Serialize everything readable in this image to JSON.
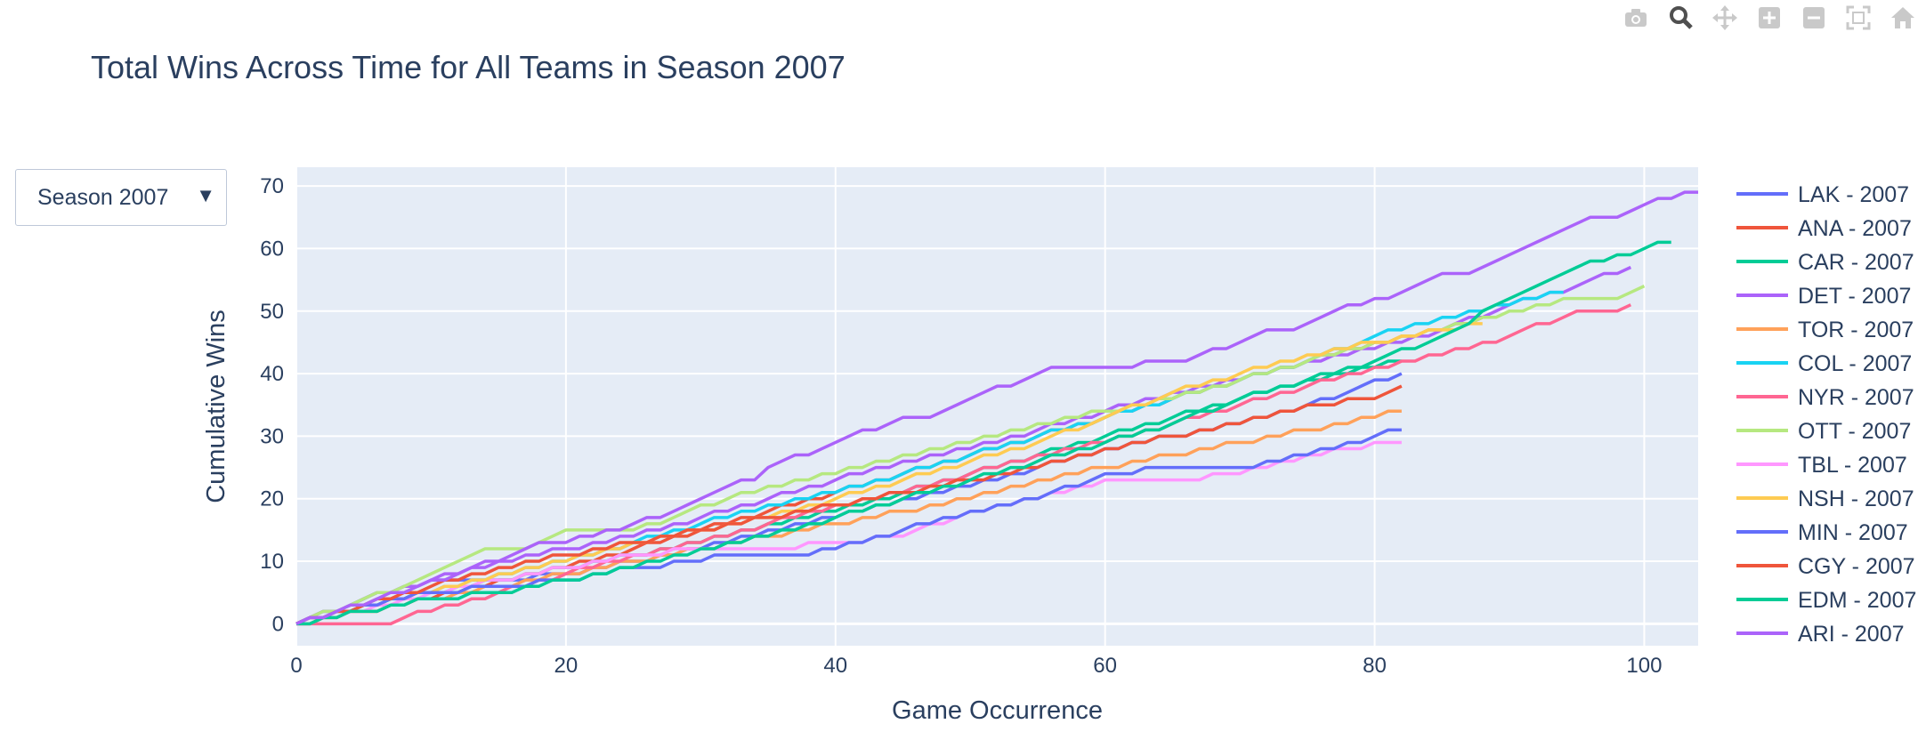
{
  "modebar": {
    "icons": [
      "camera-icon",
      "zoom-icon",
      "pan-icon",
      "zoom-in-icon",
      "zoom-out-icon",
      "autoscale-icon",
      "reset-axes-icon"
    ]
  },
  "dropdown": {
    "selected": "Season 2007",
    "arrow": "▼"
  },
  "chart_data": {
    "type": "line",
    "title": "Total Wins Across Time for All Teams in Season 2007",
    "xlabel": "Game Occurrence",
    "ylabel": "Cumulative Wins",
    "xlim": [
      0,
      104
    ],
    "ylim": [
      -3.5,
      73
    ],
    "xticks": [
      0,
      20,
      40,
      60,
      80,
      100
    ],
    "yticks": [
      0,
      10,
      20,
      30,
      40,
      50,
      60,
      70
    ],
    "grid": true,
    "legend_position": "right",
    "plot_background": "#e5ecf6",
    "series": [
      {
        "name": "LAK - 2007",
        "color": "#636efa",
        "points": [
          [
            0,
            0
          ],
          [
            5,
            4
          ],
          [
            10,
            7
          ],
          [
            15,
            7
          ],
          [
            20,
            8
          ],
          [
            25,
            10
          ],
          [
            30,
            12
          ],
          [
            35,
            15
          ],
          [
            40,
            17
          ],
          [
            45,
            20
          ],
          [
            50,
            22
          ],
          [
            55,
            25
          ],
          [
            60,
            28
          ],
          [
            65,
            30
          ],
          [
            70,
            32
          ],
          [
            75,
            35
          ],
          [
            82,
            40
          ]
        ]
      },
      {
        "name": "ANA - 2007",
        "color": "#ef553b",
        "points": [
          [
            0,
            0
          ],
          [
            5,
            2
          ],
          [
            10,
            4
          ],
          [
            15,
            7
          ],
          [
            20,
            9
          ],
          [
            25,
            12
          ],
          [
            30,
            15
          ],
          [
            35,
            18
          ],
          [
            40,
            21
          ],
          [
            45,
            24
          ],
          [
            50,
            27
          ],
          [
            55,
            30
          ],
          [
            60,
            33
          ],
          [
            65,
            36
          ],
          [
            70,
            39
          ],
          [
            75,
            42
          ],
          [
            80,
            45
          ],
          [
            85,
            47
          ],
          [
            88,
            49
          ]
        ]
      },
      {
        "name": "CAR - 2007",
        "color": "#00cc96",
        "points": [
          [
            0,
            0
          ],
          [
            5,
            3
          ],
          [
            10,
            5
          ],
          [
            15,
            7
          ],
          [
            20,
            9
          ],
          [
            25,
            11
          ],
          [
            30,
            13
          ],
          [
            35,
            16
          ],
          [
            40,
            18
          ],
          [
            45,
            21
          ],
          [
            50,
            24
          ],
          [
            55,
            27
          ],
          [
            60,
            30
          ],
          [
            65,
            33
          ],
          [
            70,
            36
          ],
          [
            75,
            39
          ],
          [
            82,
            42
          ]
        ]
      },
      {
        "name": "DET - 2007",
        "color": "#ab63fa",
        "points": [
          [
            0,
            0
          ],
          [
            5,
            4
          ],
          [
            10,
            7
          ],
          [
            15,
            10
          ],
          [
            20,
            12
          ],
          [
            25,
            14
          ],
          [
            30,
            17
          ],
          [
            35,
            20
          ],
          [
            40,
            23
          ],
          [
            45,
            26
          ],
          [
            50,
            28
          ],
          [
            55,
            31
          ],
          [
            60,
            34
          ],
          [
            65,
            37
          ],
          [
            70,
            39
          ],
          [
            75,
            42
          ],
          [
            80,
            44
          ],
          [
            85,
            47
          ],
          [
            90,
            51
          ],
          [
            95,
            54
          ],
          [
            99,
            57
          ]
        ]
      },
      {
        "name": "TOR - 2007",
        "color": "#ffa15a",
        "points": [
          [
            0,
            0
          ],
          [
            5,
            2
          ],
          [
            10,
            4
          ],
          [
            15,
            6
          ],
          [
            20,
            8
          ],
          [
            25,
            10
          ],
          [
            30,
            12
          ],
          [
            35,
            14
          ],
          [
            40,
            16
          ],
          [
            45,
            18
          ],
          [
            50,
            20
          ],
          [
            55,
            23
          ],
          [
            60,
            25
          ],
          [
            65,
            27
          ],
          [
            70,
            29
          ],
          [
            75,
            31
          ],
          [
            82,
            34
          ]
        ]
      },
      {
        "name": "COL - 2007",
        "color": "#19d3f3",
        "points": [
          [
            0,
            0
          ],
          [
            5,
            3
          ],
          [
            10,
            5
          ],
          [
            15,
            8
          ],
          [
            20,
            10
          ],
          [
            25,
            13
          ],
          [
            30,
            16
          ],
          [
            35,
            19
          ],
          [
            40,
            21
          ],
          [
            45,
            24
          ],
          [
            50,
            27
          ],
          [
            55,
            30
          ],
          [
            60,
            33
          ],
          [
            65,
            36
          ],
          [
            70,
            39
          ],
          [
            75,
            42
          ],
          [
            80,
            46
          ],
          [
            85,
            49
          ],
          [
            90,
            51
          ],
          [
            94,
            53
          ]
        ]
      },
      {
        "name": "NYR - 2007",
        "color": "#ff6692",
        "points": [
          [
            0,
            0
          ],
          [
            5,
            0
          ],
          [
            7,
            0
          ],
          [
            9,
            2
          ],
          [
            12,
            3
          ],
          [
            15,
            5
          ],
          [
            20,
            8
          ],
          [
            25,
            11
          ],
          [
            30,
            13
          ],
          [
            35,
            16
          ],
          [
            40,
            19
          ],
          [
            45,
            21
          ],
          [
            50,
            24
          ],
          [
            55,
            27
          ],
          [
            60,
            29
          ],
          [
            65,
            32
          ],
          [
            70,
            35
          ],
          [
            75,
            38
          ],
          [
            80,
            41
          ],
          [
            85,
            43
          ],
          [
            90,
            46
          ],
          [
            95,
            50
          ],
          [
            98,
            50
          ],
          [
            99,
            51
          ]
        ]
      },
      {
        "name": "OTT - 2007",
        "color": "#b6e880",
        "points": [
          [
            0,
            0
          ],
          [
            4,
            3
          ],
          [
            8,
            6
          ],
          [
            11,
            9
          ],
          [
            14,
            12
          ],
          [
            17,
            12
          ],
          [
            19,
            14
          ],
          [
            21,
            15
          ],
          [
            25,
            15
          ],
          [
            28,
            17
          ],
          [
            32,
            20
          ],
          [
            36,
            22
          ],
          [
            40,
            24
          ],
          [
            45,
            27
          ],
          [
            50,
            29
          ],
          [
            55,
            32
          ],
          [
            60,
            34
          ],
          [
            65,
            36
          ],
          [
            70,
            39
          ],
          [
            75,
            42
          ],
          [
            80,
            45
          ],
          [
            85,
            47
          ],
          [
            90,
            50
          ],
          [
            95,
            52
          ],
          [
            98,
            52
          ],
          [
            100,
            54
          ]
        ]
      },
      {
        "name": "TBL - 2007",
        "color": "#ff97ff",
        "points": [
          [
            0,
            0
          ],
          [
            5,
            2
          ],
          [
            10,
            5
          ],
          [
            15,
            7
          ],
          [
            20,
            9
          ],
          [
            25,
            11
          ],
          [
            30,
            12
          ],
          [
            35,
            12
          ],
          [
            40,
            13
          ],
          [
            45,
            14
          ],
          [
            50,
            18
          ],
          [
            55,
            20
          ],
          [
            60,
            23
          ],
          [
            65,
            23
          ],
          [
            70,
            24
          ],
          [
            75,
            27
          ],
          [
            78,
            28
          ],
          [
            82,
            29
          ]
        ]
      },
      {
        "name": "NSH - 2007",
        "color": "#fecb52",
        "points": [
          [
            0,
            0
          ],
          [
            5,
            3
          ],
          [
            10,
            5
          ],
          [
            15,
            8
          ],
          [
            20,
            10
          ],
          [
            25,
            13
          ],
          [
            30,
            15
          ],
          [
            35,
            17
          ],
          [
            40,
            20
          ],
          [
            45,
            23
          ],
          [
            50,
            26
          ],
          [
            55,
            29
          ],
          [
            60,
            33
          ],
          [
            65,
            37
          ],
          [
            70,
            40
          ],
          [
            75,
            43
          ],
          [
            80,
            45
          ],
          [
            85,
            47
          ],
          [
            88,
            48
          ]
        ]
      },
      {
        "name": "MIN - 2007",
        "color": "#636efa",
        "points": [
          [
            0,
            0
          ],
          [
            5,
            3
          ],
          [
            10,
            5
          ],
          [
            15,
            6
          ],
          [
            20,
            7
          ],
          [
            25,
            9
          ],
          [
            30,
            10
          ],
          [
            32,
            11
          ],
          [
            38,
            11
          ],
          [
            40,
            12
          ],
          [
            45,
            15
          ],
          [
            50,
            18
          ],
          [
            55,
            20
          ],
          [
            60,
            24
          ],
          [
            65,
            25
          ],
          [
            70,
            25
          ],
          [
            75,
            27
          ],
          [
            80,
            30
          ],
          [
            82,
            31
          ]
        ]
      },
      {
        "name": "CGY - 2007",
        "color": "#ef553b",
        "points": [
          [
            0,
            0
          ],
          [
            5,
            3
          ],
          [
            10,
            6
          ],
          [
            15,
            9
          ],
          [
            20,
            11
          ],
          [
            25,
            13
          ],
          [
            30,
            15
          ],
          [
            35,
            17
          ],
          [
            40,
            19
          ],
          [
            45,
            21
          ],
          [
            50,
            23
          ],
          [
            55,
            25
          ],
          [
            60,
            28
          ],
          [
            65,
            30
          ],
          [
            70,
            32
          ],
          [
            75,
            35
          ],
          [
            80,
            36
          ],
          [
            82,
            38
          ]
        ]
      },
      {
        "name": "EDM - 2007",
        "color": "#00cc96",
        "points": [
          [
            0,
            0
          ],
          [
            5,
            2
          ],
          [
            10,
            4
          ],
          [
            15,
            5
          ],
          [
            20,
            7
          ],
          [
            25,
            9
          ],
          [
            30,
            12
          ],
          [
            35,
            14
          ],
          [
            40,
            17
          ],
          [
            45,
            20
          ],
          [
            50,
            23
          ],
          [
            55,
            26
          ],
          [
            60,
            29
          ],
          [
            65,
            32
          ],
          [
            70,
            36
          ],
          [
            75,
            39
          ],
          [
            80,
            42
          ],
          [
            85,
            46
          ],
          [
            90,
            52
          ],
          [
            95,
            57
          ],
          [
            100,
            60
          ],
          [
            102,
            61
          ]
        ]
      },
      {
        "name": "ARI - 2007",
        "color": "#ab63fa",
        "points": [
          [
            0,
            0
          ],
          [
            6,
            4
          ],
          [
            12,
            8
          ],
          [
            17,
            12
          ],
          [
            18,
            13
          ],
          [
            20,
            13
          ],
          [
            22,
            14
          ],
          [
            25,
            16
          ],
          [
            28,
            18
          ],
          [
            30,
            20
          ],
          [
            32,
            22
          ],
          [
            34,
            23
          ],
          [
            35,
            25
          ],
          [
            40,
            29
          ],
          [
            45,
            33
          ],
          [
            47,
            33
          ],
          [
            50,
            36
          ],
          [
            55,
            40
          ],
          [
            56,
            41
          ],
          [
            60,
            41
          ],
          [
            62,
            41
          ],
          [
            63,
            42
          ],
          [
            66,
            42
          ],
          [
            70,
            45
          ],
          [
            72,
            47
          ],
          [
            74,
            47
          ],
          [
            78,
            51
          ],
          [
            79,
            51
          ],
          [
            80,
            52
          ],
          [
            81,
            52
          ],
          [
            85,
            56
          ],
          [
            87,
            56
          ],
          [
            95,
            64
          ],
          [
            96,
            65
          ],
          [
            98,
            65
          ],
          [
            101,
            68
          ],
          [
            102,
            68
          ],
          [
            103,
            69
          ],
          [
            104,
            69
          ]
        ]
      }
    ]
  }
}
